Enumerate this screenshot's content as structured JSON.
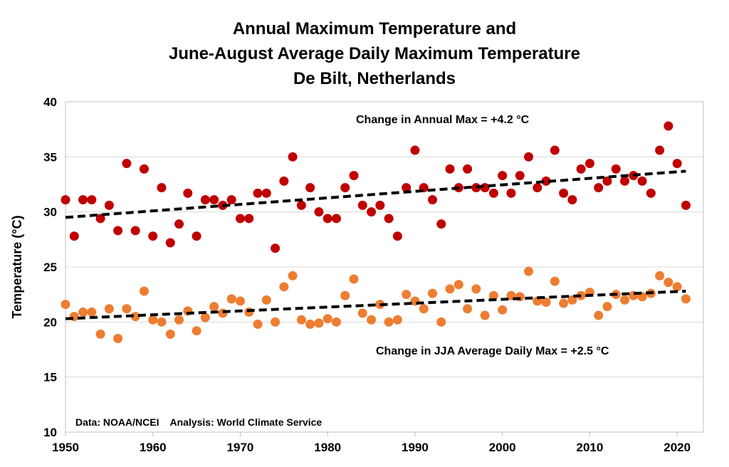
{
  "chart_data": {
    "type": "scatter",
    "title_lines": [
      "Annual Maximum Temperature and",
      "June-August Average Daily Maximum Temperature",
      "De Bilt, Netherlands"
    ],
    "ylabel": "Temperature (°C)",
    "xlabel": "",
    "xlim": [
      1950,
      2023
    ],
    "ylim": [
      10,
      40
    ],
    "x_ticks": [
      1950,
      1960,
      1970,
      1980,
      1990,
      2000,
      2010,
      2020
    ],
    "y_ticks": [
      10,
      15,
      20,
      25,
      30,
      35,
      40
    ],
    "grid": "horizontal",
    "x": [
      1950,
      1951,
      1952,
      1953,
      1954,
      1955,
      1956,
      1957,
      1958,
      1959,
      1960,
      1961,
      1962,
      1963,
      1964,
      1965,
      1966,
      1967,
      1968,
      1969,
      1970,
      1971,
      1972,
      1973,
      1974,
      1975,
      1976,
      1977,
      1978,
      1979,
      1980,
      1981,
      1982,
      1983,
      1984,
      1985,
      1986,
      1987,
      1988,
      1989,
      1990,
      1991,
      1992,
      1993,
      1994,
      1995,
      1996,
      1997,
      1998,
      1999,
      2000,
      2001,
      2002,
      2003,
      2004,
      2005,
      2006,
      2007,
      2008,
      2009,
      2010,
      2011,
      2012,
      2013,
      2014,
      2015,
      2016,
      2017,
      2018,
      2019,
      2020,
      2021
    ],
    "series": [
      {
        "color": "#c00000",
        "values": [
          31.1,
          27.8,
          31.1,
          31.1,
          29.4,
          30.6,
          28.3,
          34.4,
          28.3,
          33.9,
          27.8,
          32.2,
          27.2,
          28.9,
          31.7,
          27.8,
          31.1,
          31.1,
          30.6,
          31.1,
          29.4,
          29.4,
          31.7,
          31.7,
          26.7,
          32.8,
          35.0,
          30.6,
          32.2,
          30.0,
          29.4,
          29.4,
          32.2,
          33.3,
          30.6,
          30.0,
          30.6,
          29.4,
          27.8,
          32.2,
          35.6,
          32.2,
          31.1,
          28.9,
          33.9,
          32.2,
          33.9,
          32.2,
          32.2,
          31.7,
          33.3,
          31.7,
          33.3,
          35.0,
          32.2,
          32.8,
          35.6,
          31.7,
          31.1,
          33.9,
          34.4,
          32.2,
          32.8,
          33.9,
          32.8,
          33.3,
          32.8,
          31.7,
          35.6,
          37.8,
          34.4,
          30.6
        ],
        "trend": [
          29.5,
          33.7
        ],
        "trend_label": "Change in Annual Max = +4.2 °C"
      },
      {
        "color": "#ed7d31",
        "values": [
          21.6,
          20.5,
          20.9,
          20.9,
          18.9,
          21.2,
          18.5,
          21.2,
          20.5,
          22.8,
          20.2,
          20.0,
          18.9,
          20.2,
          21.0,
          19.2,
          20.4,
          21.4,
          20.8,
          22.1,
          21.9,
          20.9,
          19.8,
          22.0,
          20.0,
          23.2,
          24.2,
          20.2,
          19.8,
          19.9,
          20.3,
          20.0,
          22.4,
          23.9,
          20.8,
          20.2,
          21.6,
          20.0,
          20.2,
          22.5,
          21.9,
          21.2,
          22.6,
          20.0,
          23.0,
          23.4,
          21.2,
          23.0,
          20.6,
          22.4,
          21.1,
          22.4,
          22.3,
          24.6,
          21.9,
          21.8,
          23.7,
          21.7,
          22.0,
          22.4,
          22.7,
          20.6,
          21.4,
          22.5,
          22.0,
          22.4,
          22.3,
          22.6,
          24.2,
          23.6,
          23.2,
          22.1
        ],
        "trend": [
          20.3,
          22.8
        ],
        "trend_label": "Change in JJA Average Daily Max = +2.5 °C"
      }
    ],
    "credit": "Data: NOAA/NCEI    Analysis: World Climate Service"
  }
}
